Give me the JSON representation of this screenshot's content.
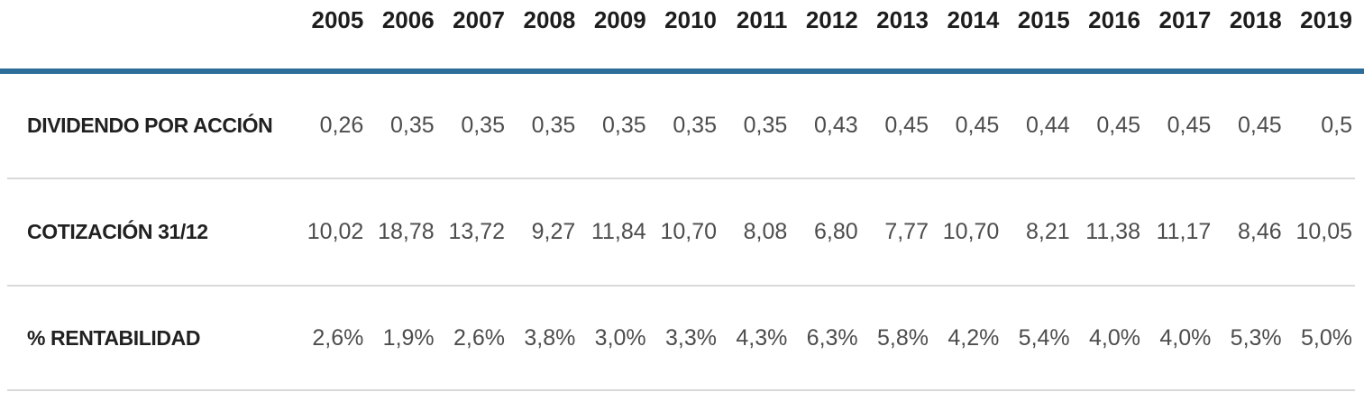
{
  "table": {
    "years": [
      "2005",
      "2006",
      "2007",
      "2008",
      "2009",
      "2010",
      "2011",
      "2012",
      "2013",
      "2014",
      "2015",
      "2016",
      "2017",
      "2018",
      "2019"
    ],
    "rows": [
      {
        "label": "DIVIDENDO POR ACCIÓN",
        "values": [
          "0,26",
          "0,35",
          "0,35",
          "0,35",
          "0,35",
          "0,35",
          "0,35",
          "0,43",
          "0,45",
          "0,45",
          "0,44",
          "0,45",
          "0,45",
          "0,45",
          "0,5"
        ]
      },
      {
        "label": "COTIZACIÓN 31/12",
        "values": [
          "10,02",
          "18,78",
          "13,72",
          "9,27",
          "11,84",
          "10,70",
          "8,08",
          "6,80",
          "7,77",
          "10,70",
          "8,21",
          "11,38",
          "11,17",
          "8,46",
          "10,05"
        ]
      },
      {
        "label": "% RENTABILIDAD",
        "values": [
          "2,6%",
          "1,9%",
          "2,6%",
          "3,8%",
          "3,0%",
          "3,3%",
          "4,3%",
          "6,3%",
          "5,8%",
          "4,2%",
          "5,4%",
          "4,0%",
          "4,0%",
          "5,3%",
          "5,0%"
        ]
      }
    ],
    "colors": {
      "header_rule": "#2d6d9a",
      "row_rule": "#d9d9d9",
      "header_text": "#1d1d1d",
      "label_text": "#212121",
      "value_text": "#4d4d4d"
    }
  },
  "chart_data": {
    "type": "table",
    "title": "",
    "categories": [
      "2005",
      "2006",
      "2007",
      "2008",
      "2009",
      "2010",
      "2011",
      "2012",
      "2013",
      "2014",
      "2015",
      "2016",
      "2017",
      "2018",
      "2019"
    ],
    "series": [
      {
        "name": "DIVIDENDO POR ACCIÓN",
        "values": [
          0.26,
          0.35,
          0.35,
          0.35,
          0.35,
          0.35,
          0.35,
          0.43,
          0.45,
          0.45,
          0.44,
          0.45,
          0.45,
          0.45,
          0.5
        ]
      },
      {
        "name": "COTIZACIÓN 31/12",
        "values": [
          10.02,
          18.78,
          13.72,
          9.27,
          11.84,
          10.7,
          8.08,
          6.8,
          7.77,
          10.7,
          8.21,
          11.38,
          11.17,
          8.46,
          10.05
        ]
      },
      {
        "name": "% RENTABILIDAD",
        "values": [
          2.6,
          1.9,
          2.6,
          3.8,
          3.0,
          3.3,
          4.3,
          6.3,
          5.8,
          4.2,
          5.4,
          4.0,
          4.0,
          5.3,
          5.0
        ],
        "unit": "%"
      }
    ],
    "layout": {
      "decimal_separator": ",",
      "first_column": "row labels",
      "grid": "horizontal rules only"
    }
  }
}
